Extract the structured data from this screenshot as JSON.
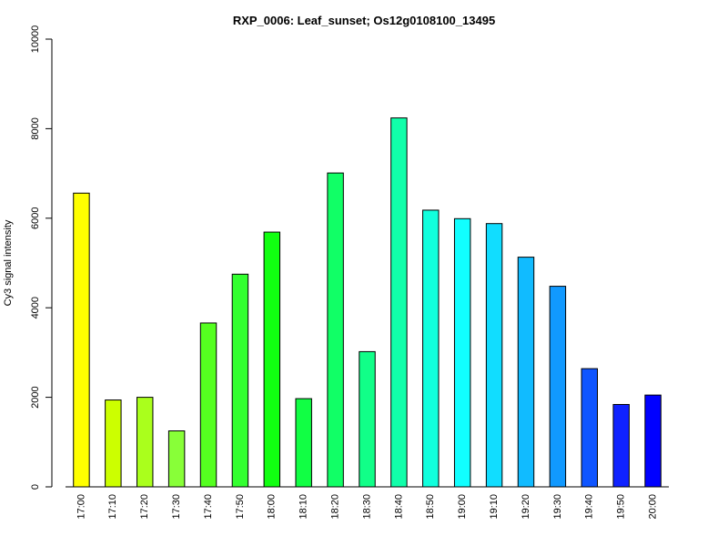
{
  "chart_data": {
    "type": "bar",
    "title": "RXP_0006: Leaf_sunset; Os12g0108100_13495",
    "xlabel": "",
    "ylabel": "Cy3 signal intensity",
    "ylim": [
      0,
      10000
    ],
    "yticks": [
      "0",
      "2000",
      "4000",
      "6000",
      "8000",
      "10000"
    ],
    "categories": [
      "17:00",
      "17:10",
      "17:20",
      "17:30",
      "17:40",
      "17:50",
      "18:00",
      "18:10",
      "18:20",
      "18:30",
      "18:40",
      "18:50",
      "19:00",
      "19:10",
      "19:20",
      "19:30",
      "19:40",
      "19:50",
      "20:00"
    ],
    "values": [
      6560,
      1940,
      2000,
      1250,
      3660,
      4750,
      5690,
      1970,
      7010,
      3020,
      8240,
      6180,
      5990,
      5880,
      5130,
      4480,
      2640,
      1840,
      2050
    ],
    "colors": [
      "#ffff00",
      "#ccff00",
      "#aaff1c",
      "#88ff38",
      "#55ff20",
      "#33ff30",
      "#11ff11",
      "#11ff44",
      "#11ff66",
      "#11ff88",
      "#11ffaa",
      "#11ffdd",
      "#11ffff",
      "#11ddff",
      "#11bbff",
      "#1199ff",
      "#0f55ff",
      "#0f22ff",
      "#0000ff"
    ],
    "grid": false,
    "legend": "none"
  }
}
